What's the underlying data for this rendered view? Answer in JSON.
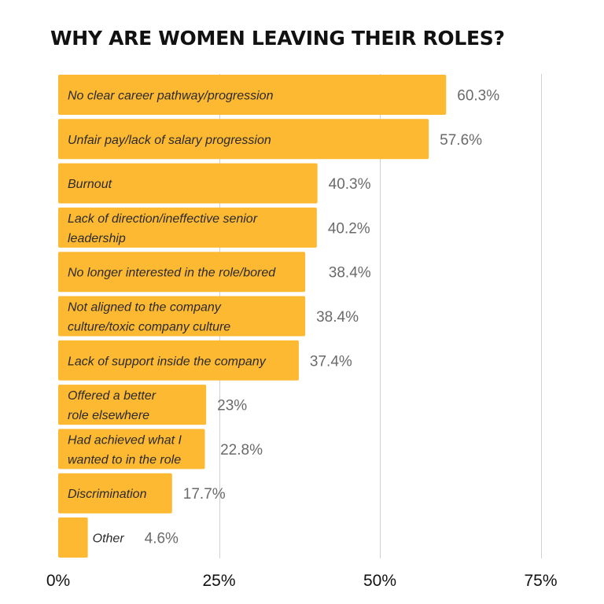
{
  "chart_data": {
    "type": "bar",
    "orientation": "horizontal",
    "title": "WHY ARE WOMEN LEAVING THEIR ROLES?",
    "categories": [
      "No clear career pathway/progression",
      "Unfair pay/lack of salary progression",
      "Burnout",
      "Lack of direction/ineffective senior leadership",
      "No longer interested in the role/bored",
      "Not aligned to the company culture/toxic company culture",
      "Lack of support inside the company",
      "Offered a better role elsewhere",
      "Had achieved what I wanted to in the role",
      "Discrimination",
      "Other"
    ],
    "label_lines": [
      [
        "No clear career pathway/progression"
      ],
      [
        "Unfair pay/lack of salary progression"
      ],
      [
        "Burnout"
      ],
      [
        "Lack of direction/ineffective senior",
        "leadership"
      ],
      [
        "No longer interested in the role/bored"
      ],
      [
        "Not aligned to the company",
        "culture/toxic company culture"
      ],
      [
        "Lack of support inside the company"
      ],
      [
        "Offered a better",
        "role elsewhere"
      ],
      [
        "Had achieved what I",
        "wanted to in the role"
      ],
      [
        "Discrimination"
      ],
      [
        "Other"
      ]
    ],
    "values": [
      60.3,
      57.6,
      40.3,
      40.2,
      38.4,
      38.4,
      37.4,
      23,
      22.8,
      17.7,
      4.6
    ],
    "value_labels": [
      "60.3%",
      "57.6%",
      "40.3%",
      "40.2%",
      "38.4%",
      "38.4%",
      "37.4%",
      "23%",
      "22.8%",
      "17.7%",
      "4.6%"
    ],
    "xlim": [
      0,
      75
    ],
    "x_ticks": [
      0,
      25,
      50,
      75
    ],
    "x_tick_labels": [
      "0%",
      "25%",
      "50%",
      "75%"
    ],
    "grid": true,
    "bar_color": "#FDB931"
  }
}
